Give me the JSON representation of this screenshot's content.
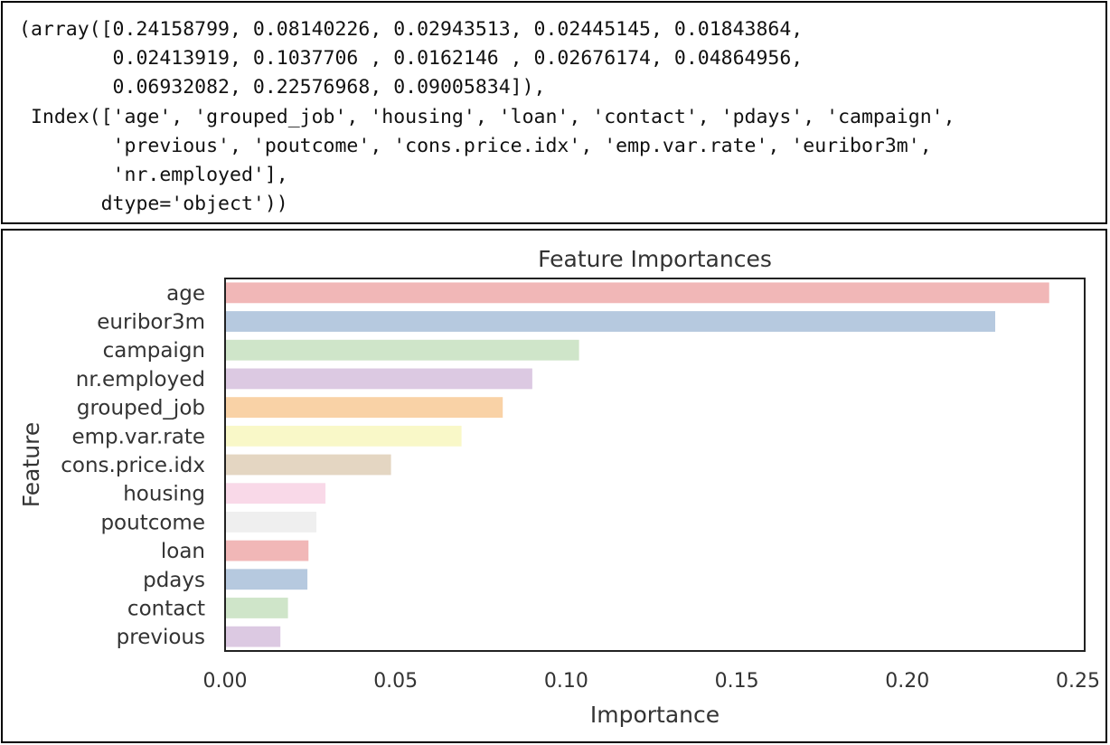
{
  "code_output": {
    "lines": [
      "(array([0.24158799, 0.08140226, 0.02943513, 0.02445145, 0.01843864,",
      "        0.02413919, 0.1037706 , 0.0162146 , 0.02676174, 0.04864956,",
      "        0.06932082, 0.22576968, 0.09005834]),",
      " Index(['age', 'grouped_job', 'housing', 'loan', 'contact', 'pdays', 'campaign',",
      "        'previous', 'poutcome', 'cons.price.idx', 'emp.var.rate', 'euribor3m',",
      "        'nr.employed'],",
      "       dtype='object'))"
    ]
  },
  "chart_data": {
    "type": "bar",
    "orientation": "horizontal",
    "title": "Feature Importances",
    "xlabel": "Importance",
    "ylabel": "Feature",
    "xlim": [
      0,
      0.252
    ],
    "xticks": [
      0.0,
      0.05,
      0.1,
      0.15,
      0.2,
      0.25
    ],
    "xtick_labels": [
      "0.00",
      "0.05",
      "0.10",
      "0.15",
      "0.20",
      "0.25"
    ],
    "grid": false,
    "categories": [
      "age",
      "euribor3m",
      "campaign",
      "nr.employed",
      "grouped_job",
      "emp.var.rate",
      "cons.price.idx",
      "housing",
      "poutcome",
      "loan",
      "pdays",
      "contact",
      "previous"
    ],
    "values": [
      0.24158799,
      0.22576968,
      0.1037706,
      0.09005834,
      0.08140226,
      0.06932082,
      0.04864956,
      0.02943513,
      0.02676174,
      0.02445145,
      0.02413919,
      0.01843864,
      0.0162146
    ],
    "colors": [
      "#f1b7b7",
      "#b6c9df",
      "#cfe5c9",
      "#dcc9e2",
      "#f9d2a6",
      "#f9f8c8",
      "#e4d6c2",
      "#f9d9e8",
      "#efefef",
      "#f1b7b7",
      "#b6c9df",
      "#cfe5c9",
      "#dcc9e2"
    ]
  }
}
